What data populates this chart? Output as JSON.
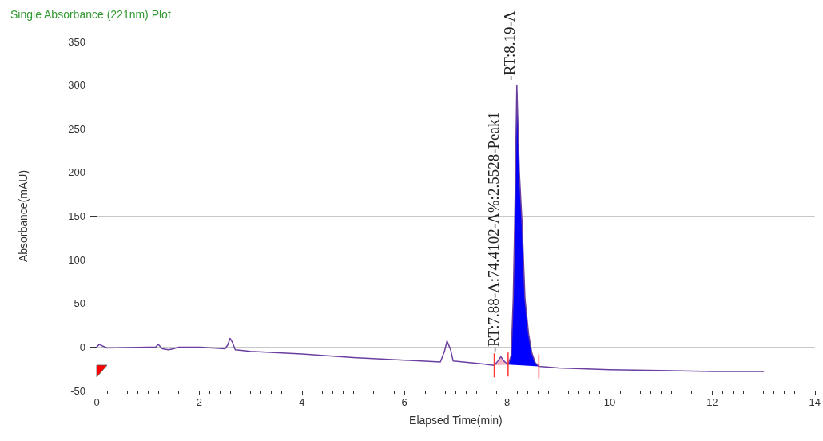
{
  "chart_data": {
    "type": "line",
    "title": "Single Absorbance (221nm) Plot",
    "xlabel": "Elapsed Time(min)",
    "ylabel": "Absorbance(mAU)",
    "xlim": [
      0,
      14
    ],
    "xticks": [
      0,
      2,
      4,
      6,
      8,
      10,
      12,
      14
    ],
    "ylim": [
      -50,
      350
    ],
    "yticks": [
      -50,
      0,
      50,
      100,
      150,
      200,
      250,
      300,
      350
    ],
    "grid": "y",
    "legend": false,
    "marker": "none",
    "line_style": "solid",
    "series": [
      {
        "type": "area",
        "color": "#f4b6c2",
        "x": [
          7.75,
          7.82,
          7.88,
          7.94,
          8.02
        ],
        "values": [
          -21,
          -16,
          -11,
          -16,
          -20
        ]
      },
      {
        "type": "area",
        "color": "#0000ff",
        "x": [
          8.02,
          8.08,
          8.12,
          8.15,
          8.19,
          8.24,
          8.29,
          8.35,
          8.42,
          8.48,
          8.55,
          8.62
        ],
        "values": [
          -20,
          -10,
          55,
          145,
          300,
          200,
          145,
          55,
          15,
          -6,
          -18,
          -22
        ]
      },
      {
        "type": "line",
        "color": "#6a3fa0",
        "x": [
          0,
          0.05,
          0.2,
          1.0,
          1.15,
          1.2,
          1.28,
          1.4,
          1.5,
          1.6,
          2.0,
          2.5,
          2.55,
          2.6,
          2.65,
          2.7,
          3.0,
          4.0,
          5.0,
          6.0,
          6.7,
          6.78,
          6.83,
          6.9,
          6.95,
          7.5,
          7.75,
          7.82,
          7.88,
          7.94,
          8.02,
          8.08,
          8.12,
          8.15,
          8.19,
          8.24,
          8.29,
          8.35,
          8.42,
          8.48,
          8.55,
          8.62,
          9,
          10,
          11,
          12,
          13
        ],
        "values": [
          0,
          3,
          -1,
          0,
          0,
          3,
          -2,
          -3,
          -2,
          0,
          0,
          -2,
          2,
          10,
          5,
          -3,
          -5,
          -8,
          -12,
          -15,
          -17,
          -5,
          7,
          -3,
          -16,
          -19,
          -21,
          -16,
          -11,
          -16,
          -20,
          -10,
          55,
          145,
          300,
          200,
          145,
          55,
          15,
          -6,
          -18,
          -22,
          -24,
          -26,
          -27,
          -28,
          -28
        ]
      }
    ],
    "annotations": [
      {
        "text": "-RT:7.88-A:74.4102-A%:2.5528-Peak1",
        "x": 7.88,
        "y": -11
      },
      {
        "text": "-RT:8.19-A",
        "x": 8.19,
        "y": 300
      }
    ]
  }
}
